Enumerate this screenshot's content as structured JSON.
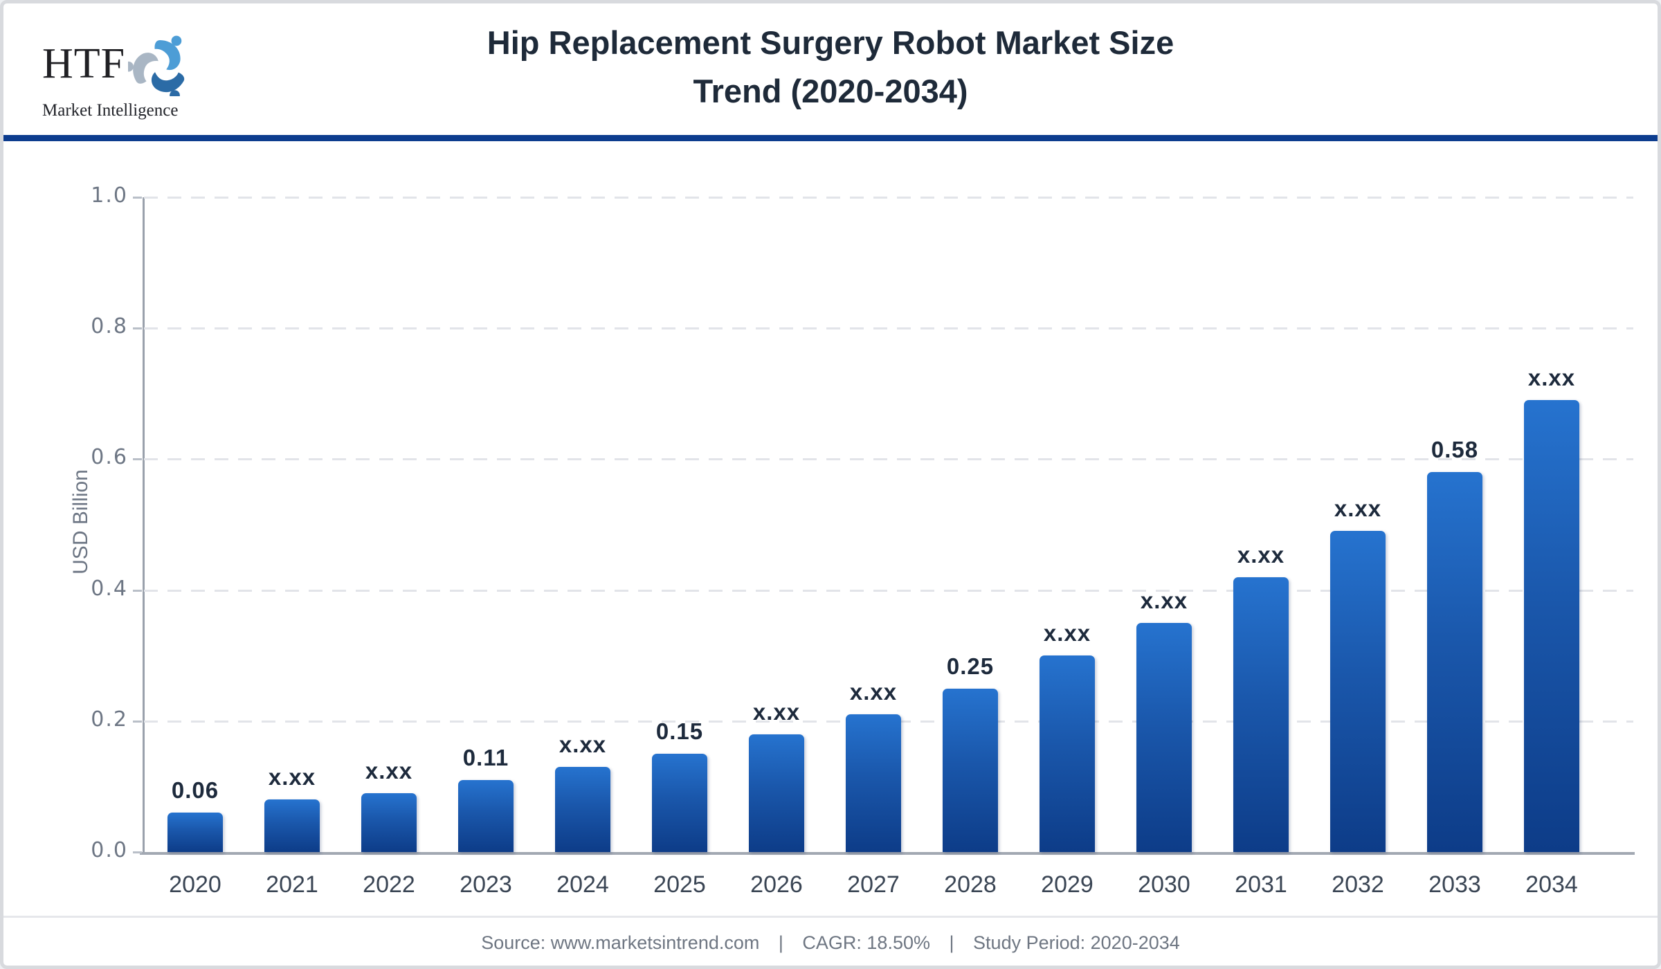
{
  "header": {
    "logo_text": "HTF",
    "logo_subtext": "Market Intelligence",
    "title_line1": "Hip Replacement Surgery Robot Market Size",
    "title_line2": "Trend (2020-2034)"
  },
  "chart_data": {
    "type": "bar",
    "title": "Hip Replacement Surgery Robot Market Size Trend (2020-2034)",
    "xlabel": "",
    "ylabel": "USD Billion",
    "ylim": [
      0,
      1.0
    ],
    "ytick_labels": [
      "1.0",
      "0.8",
      "0.6",
      "0.4",
      "0.2",
      "0.0"
    ],
    "ytick_values": [
      1.0,
      0.8,
      0.6,
      0.4,
      0.2,
      0.0
    ],
    "grid": "horizontal dashed",
    "legend": "none",
    "categories": [
      "2020",
      "2021",
      "2022",
      "2023",
      "2024",
      "2025",
      "2026",
      "2027",
      "2028",
      "2029",
      "2030",
      "2031",
      "2032",
      "2033",
      "2034"
    ],
    "values": [
      0.06,
      0.08,
      0.09,
      0.11,
      0.13,
      0.15,
      0.18,
      0.21,
      0.25,
      0.3,
      0.35,
      0.42,
      0.49,
      0.58,
      0.69
    ],
    "bar_value_labels": [
      "0.06",
      "x.xx",
      "x.xx",
      "0.11",
      "x.xx",
      "0.15",
      "x.xx",
      "x.xx",
      "0.25",
      "x.xx",
      "x.xx",
      "x.xx",
      "x.xx",
      "0.58",
      "x.xx"
    ],
    "bar_color_top": "#2673cf",
    "bar_color_bottom": "#0d3c88",
    "accent_color": "#0c3c8e"
  },
  "footer": {
    "source": "Source: www.marketsintrend.com",
    "sep1": "|",
    "cagr": "CAGR: 18.50%",
    "sep2": "|",
    "period": "Study Period: 2020-2034"
  }
}
